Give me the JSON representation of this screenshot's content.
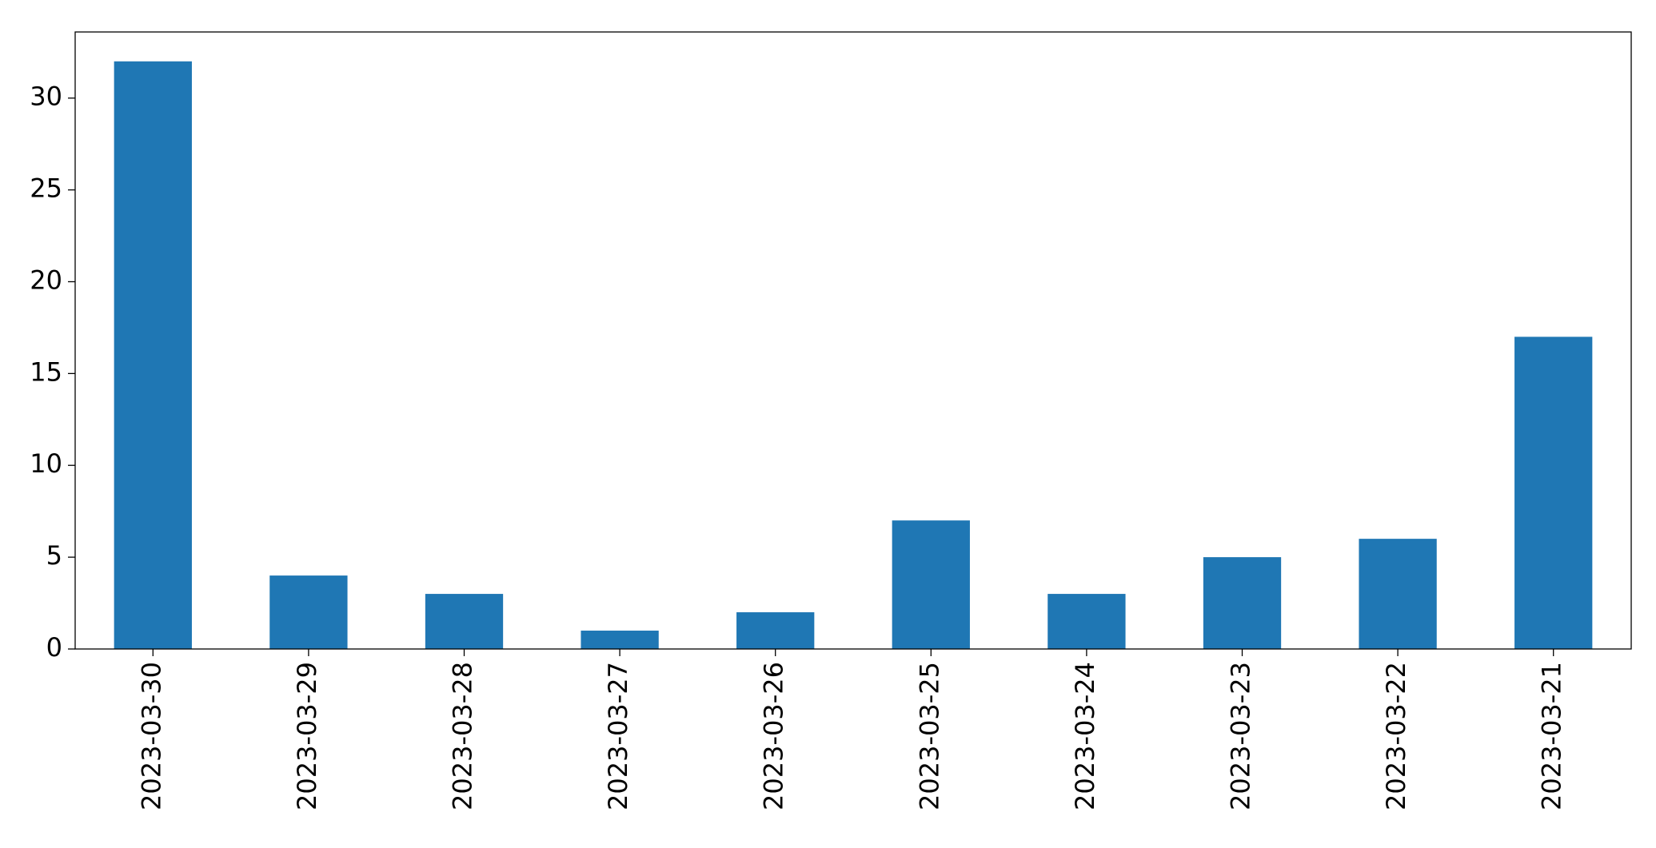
{
  "chart_data": {
    "type": "bar",
    "categories": [
      "2023-03-30",
      "2023-03-29",
      "2023-03-28",
      "2023-03-27",
      "2023-03-26",
      "2023-03-25",
      "2023-03-24",
      "2023-03-23",
      "2023-03-22",
      "2023-03-21"
    ],
    "values": [
      32,
      4,
      3,
      1,
      2,
      7,
      3,
      5,
      6,
      17
    ],
    "color": "#1f77b4",
    "ylim": [
      0,
      33.6
    ],
    "yticks": [
      0,
      5,
      10,
      15,
      20,
      25,
      30
    ],
    "grid": false
  }
}
